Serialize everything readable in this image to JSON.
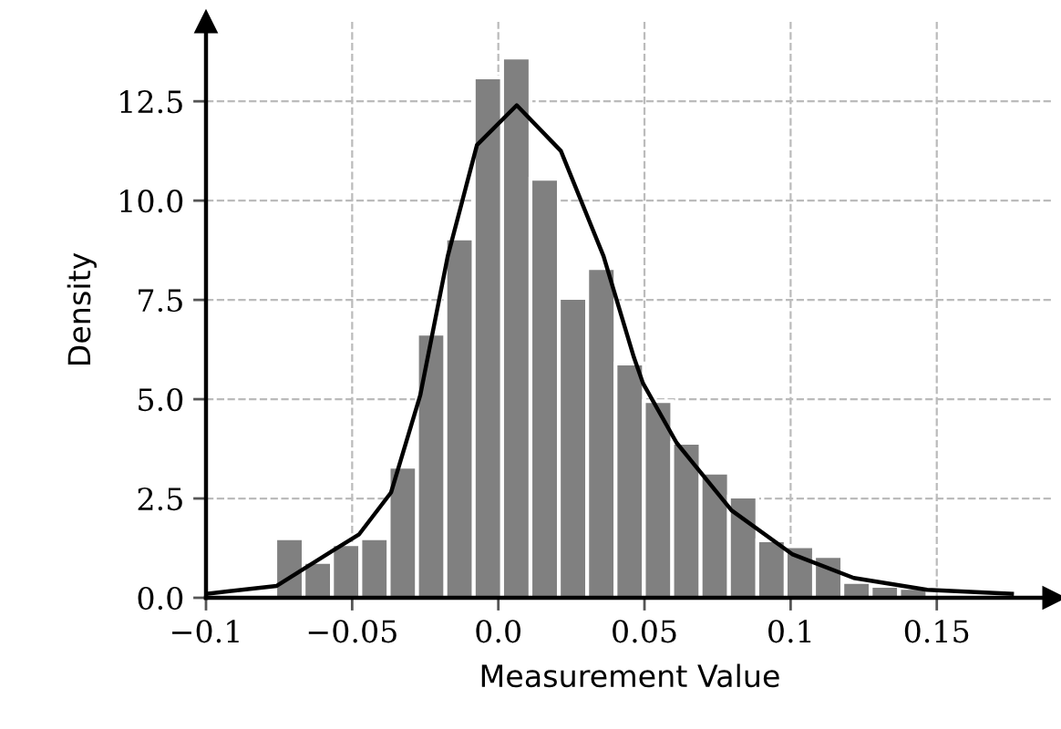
{
  "chart_data": {
    "type": "histogram",
    "xlabel": "Measurement Value",
    "ylabel": "Density",
    "bins": [
      -0.0763,
      -0.0666,
      -0.0569,
      -0.0472,
      -0.0375,
      -0.0278,
      -0.0181,
      -0.0084,
      0.0013,
      0.011,
      0.0207,
      0.0304,
      0.0401,
      0.0498,
      0.0595,
      0.0692,
      0.0789,
      0.0886,
      0.0983,
      0.108,
      0.1177,
      0.1274,
      0.1371,
      0.1468
    ],
    "values": [
      1.5,
      0.9,
      1.35,
      1.5,
      3.3,
      6.65,
      9.05,
      13.1,
      13.6,
      10.55,
      7.55,
      8.3,
      5.9,
      4.95,
      3.9,
      3.15,
      2.55,
      1.45,
      1.3,
      1.05,
      0.4,
      0.3,
      0.25
    ],
    "color": "#808080",
    "series": [
      {
        "type": "line",
        "color": "#000000",
        "x": [
          -0.1,
          -0.0758,
          -0.0563,
          -0.0476,
          -0.0367,
          -0.0267,
          -0.0173,
          -0.0073,
          0.0063,
          0.0214,
          0.036,
          0.0464,
          0.0495,
          0.061,
          0.0798,
          0.1005,
          0.1216,
          0.1467,
          0.1757
        ],
        "values": [
          0.1,
          0.3,
          1.2,
          1.6,
          2.65,
          5.1,
          8.6,
          11.4,
          12.4,
          11.25,
          8.6,
          6.05,
          5.4,
          3.9,
          2.2,
          1.1,
          0.5,
          0.2,
          0.1
        ]
      }
    ],
    "xlim": [
      -0.1,
      0.19
    ],
    "ylim": [
      0,
      14.5
    ],
    "xticks": [
      {
        "value": -0.1,
        "label": "−0.1"
      },
      {
        "value": -0.05,
        "label": "−0.05"
      },
      {
        "value": 0,
        "label": "0.0"
      },
      0.05,
      0.1,
      0.15
    ],
    "yticks": [
      {
        "value": 0,
        "label": "0.0"
      },
      2.5,
      {
        "value": 5,
        "label": "5.0"
      },
      7.5,
      {
        "value": 10,
        "label": "10.0"
      },
      12.5
    ],
    "grid": true
  }
}
